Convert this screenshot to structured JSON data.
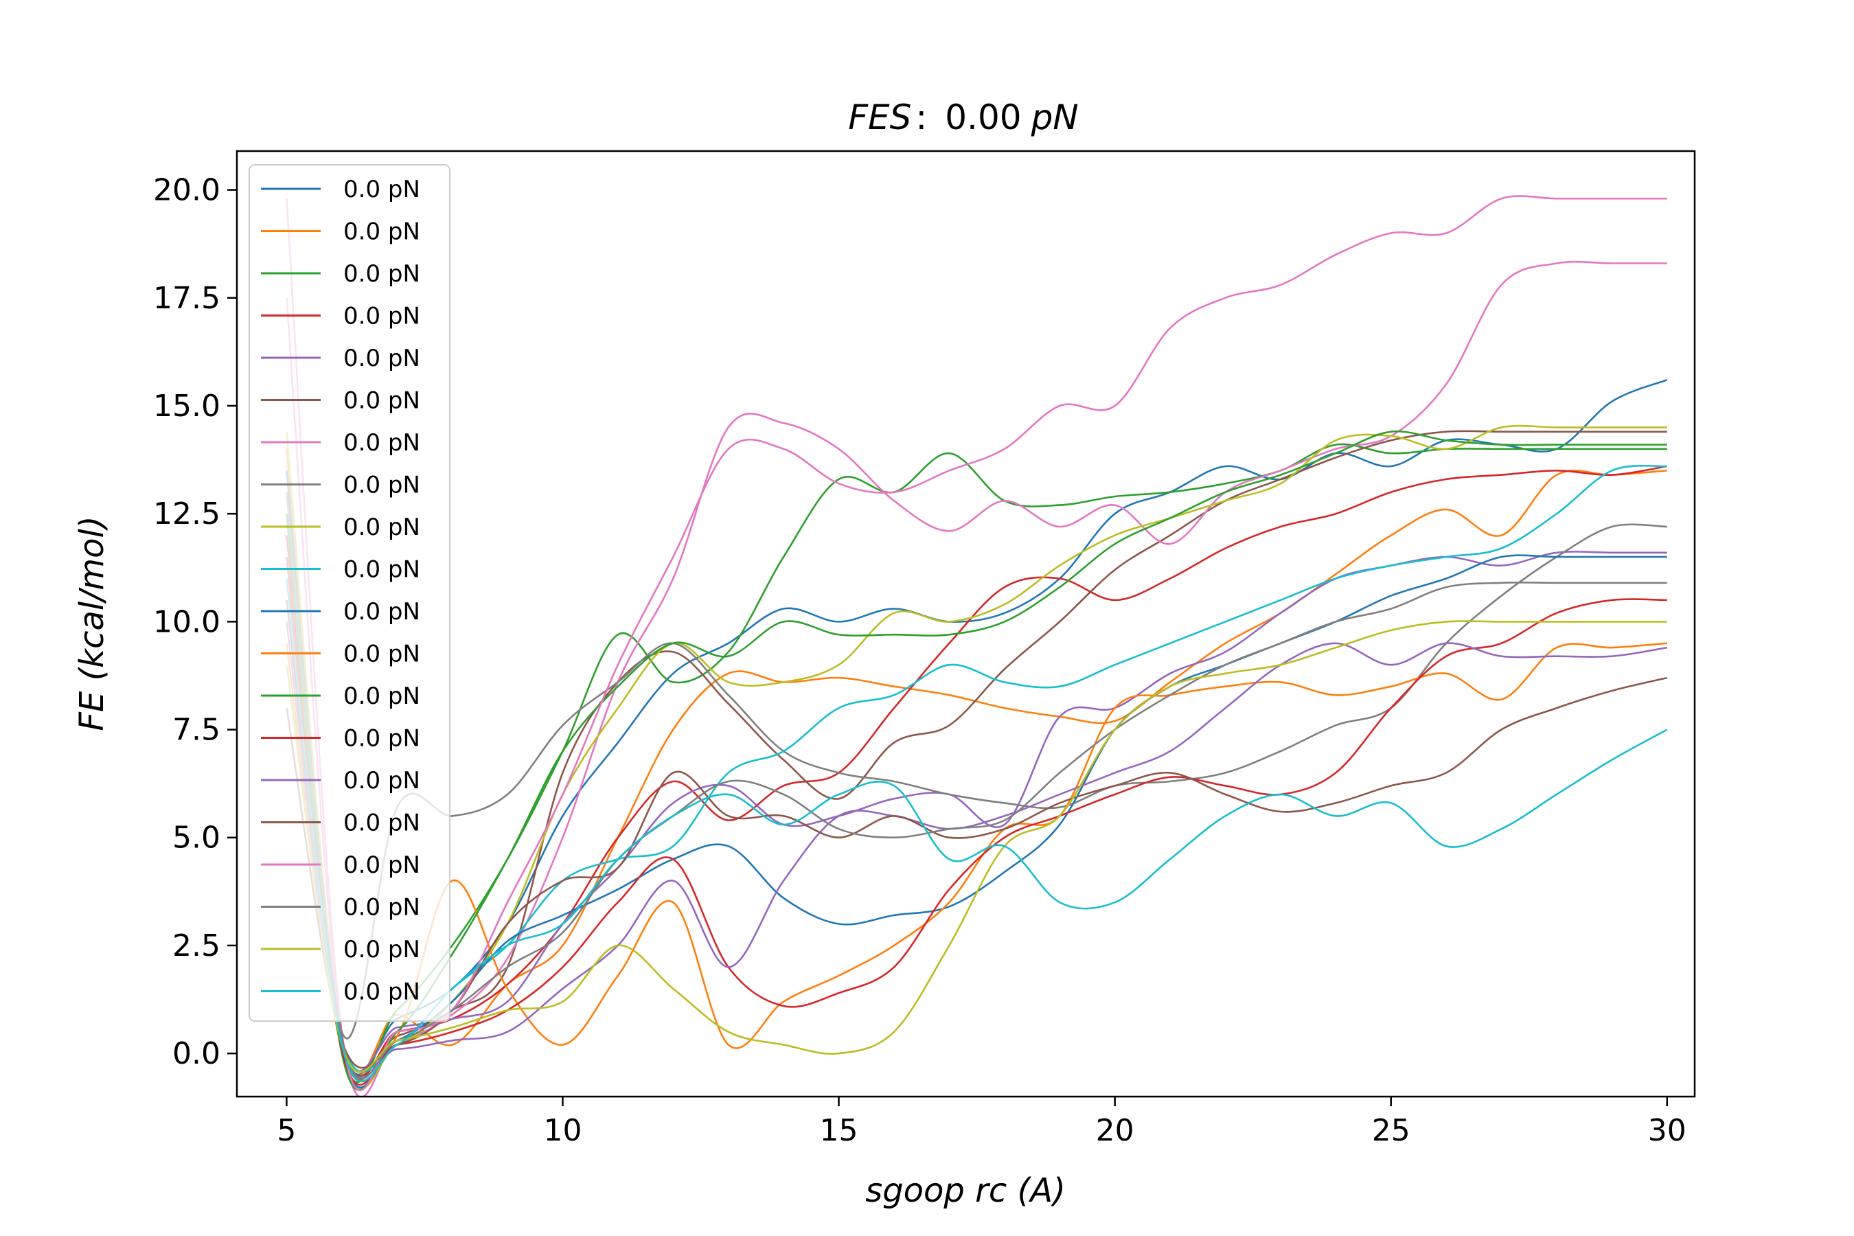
{
  "chart_data": {
    "type": "line",
    "title": "FES :  0.00 pN",
    "title_parts": {
      "italic": "FES",
      "separator": ":",
      "value": "0.00",
      "unit": "pN"
    },
    "xlabel": "sgoop rc (A)",
    "ylabel": "FE (kcal/mol)",
    "xlim": [
      4.1,
      30.5
    ],
    "ylim": [
      -1.0,
      20.9
    ],
    "xticks": [
      5,
      10,
      15,
      20,
      25,
      30
    ],
    "xtick_labels": [
      "5",
      "10",
      "15",
      "20",
      "25",
      "30"
    ],
    "yticks": [
      0.0,
      2.5,
      5.0,
      7.5,
      10.0,
      12.5,
      15.0,
      17.5,
      20.0
    ],
    "ytick_labels": [
      "0.0",
      "2.5",
      "5.0",
      "7.5",
      "10.0",
      "12.5",
      "15.0",
      "17.5",
      "20.0"
    ],
    "grid": false,
    "legend_position": "upper-left",
    "series": [
      {
        "name": "0.0 pN",
        "color": "#1f77b4",
        "x": [
          5,
          6,
          7,
          8,
          9,
          10,
          11,
          12,
          13,
          14,
          15,
          16,
          17,
          18,
          19,
          20,
          21,
          22,
          23,
          24,
          25,
          26,
          27,
          28,
          29,
          30
        ],
        "y": [
          12.5,
          0.3,
          0.8,
          1.5,
          3.0,
          5.5,
          7.2,
          8.8,
          9.5,
          10.3,
          10.0,
          10.3,
          10.0,
          10.2,
          11.0,
          12.5,
          13.0,
          13.6,
          13.3,
          13.9,
          13.6,
          14.2,
          14.1,
          14.0,
          15.1,
          15.6
        ]
      },
      {
        "name": "0.0 pN",
        "color": "#ff7f0e",
        "x": [
          5,
          6,
          7,
          8,
          9,
          10,
          11,
          12,
          13,
          14,
          15,
          16,
          17,
          18,
          19,
          20,
          21,
          22,
          23,
          24,
          25,
          26,
          27,
          28,
          29,
          30
        ],
        "y": [
          14.0,
          0.3,
          0.9,
          0.2,
          1.6,
          2.5,
          5.0,
          7.5,
          8.8,
          8.6,
          8.7,
          8.5,
          8.3,
          8.0,
          7.8,
          7.7,
          8.6,
          9.5,
          10.2,
          11.1,
          12.0,
          12.6,
          12.0,
          13.4,
          13.4,
          13.5
        ]
      },
      {
        "name": "0.0 pN",
        "color": "#2ca02c",
        "x": [
          5,
          6,
          7,
          8,
          9,
          10,
          11,
          12,
          13,
          14,
          15,
          16,
          17,
          18,
          19,
          20,
          21,
          22,
          23,
          24,
          25,
          26,
          27,
          28,
          29,
          30
        ],
        "y": [
          13.0,
          0.1,
          1.0,
          2.5,
          4.5,
          7.0,
          9.7,
          8.6,
          9.3,
          11.5,
          13.3,
          13.0,
          13.9,
          12.8,
          12.7,
          12.9,
          13.0,
          13.2,
          13.5,
          14.1,
          13.9,
          14.0,
          14.0,
          14.0,
          14.0,
          14.0
        ]
      },
      {
        "name": "0.0 pN",
        "color": "#d62728",
        "x": [
          5,
          6,
          7,
          8,
          9,
          10,
          11,
          12,
          13,
          14,
          15,
          16,
          17,
          18,
          19,
          20,
          21,
          22,
          23,
          24,
          25,
          26,
          27,
          28,
          29,
          30
        ],
        "y": [
          12.0,
          0.2,
          0.5,
          0.8,
          1.6,
          3.0,
          5.0,
          6.3,
          5.4,
          6.2,
          6.5,
          8.0,
          9.5,
          10.8,
          11.0,
          10.5,
          11.0,
          11.7,
          12.2,
          12.5,
          13.0,
          13.3,
          13.4,
          13.5,
          13.4,
          13.6
        ]
      },
      {
        "name": "0.0 pN",
        "color": "#9467bd",
        "x": [
          5,
          6,
          7,
          8,
          9,
          10,
          11,
          12,
          13,
          14,
          15,
          16,
          17,
          18,
          19,
          20,
          21,
          22,
          23,
          24,
          25,
          26,
          27,
          28,
          29,
          30
        ],
        "y": [
          11.0,
          0.3,
          0.6,
          0.8,
          1.2,
          3.0,
          4.3,
          5.8,
          6.2,
          5.3,
          5.5,
          5.9,
          6.0,
          5.3,
          7.8,
          8.0,
          8.8,
          9.3,
          10.2,
          11.0,
          11.3,
          11.5,
          11.3,
          11.6,
          11.6,
          11.6
        ]
      },
      {
        "name": "0.0 pN",
        "color": "#8c564b",
        "x": [
          5,
          6,
          7,
          8,
          9,
          10,
          11,
          12,
          13,
          14,
          15,
          16,
          17,
          18,
          19,
          20,
          21,
          22,
          23,
          24,
          25,
          26,
          27,
          28,
          29,
          30
        ],
        "y": [
          10.5,
          0.2,
          0.4,
          1.0,
          2.0,
          6.5,
          8.6,
          9.3,
          8.1,
          6.8,
          5.9,
          7.2,
          7.6,
          8.9,
          10.0,
          11.2,
          12.0,
          12.8,
          13.3,
          13.8,
          14.2,
          14.4,
          14.4,
          14.4,
          14.4,
          14.4
        ]
      },
      {
        "name": "0.0 pN",
        "color": "#e377c2",
        "x": [
          5,
          6,
          7,
          8,
          9,
          10,
          11,
          12,
          13,
          14,
          15,
          16,
          17,
          18,
          19,
          20,
          21,
          22,
          23,
          24,
          25,
          26,
          27,
          28,
          29,
          30
        ],
        "y": [
          19.8,
          0.5,
          0.3,
          0.9,
          2.2,
          5.0,
          8.6,
          11.0,
          14.5,
          14.6,
          14.0,
          12.8,
          12.1,
          12.8,
          12.2,
          12.7,
          11.8,
          13.0,
          13.5,
          14.0,
          14.3,
          15.5,
          17.8,
          18.3,
          18.3,
          18.3
        ]
      },
      {
        "name": "0.0 pN",
        "color": "#7f7f7f",
        "x": [
          5,
          6,
          7,
          8,
          9,
          10,
          11,
          12,
          13,
          14,
          15,
          16,
          17,
          18,
          19,
          20,
          21,
          22,
          23,
          24,
          25,
          26,
          27,
          28,
          29,
          30
        ],
        "y": [
          12.5,
          0.5,
          5.7,
          5.5,
          6.0,
          7.6,
          8.6,
          9.5,
          8.3,
          7.0,
          6.5,
          6.3,
          6.0,
          5.8,
          5.7,
          6.2,
          6.3,
          6.5,
          7.0,
          7.6,
          8.0,
          9.5,
          10.6,
          11.5,
          12.2,
          12.2
        ]
      },
      {
        "name": "0.0 pN",
        "color": "#bcbd22",
        "x": [
          5,
          6,
          7,
          8,
          9,
          10,
          11,
          12,
          13,
          14,
          15,
          16,
          17,
          18,
          19,
          20,
          21,
          22,
          23,
          24,
          25,
          26,
          27,
          28,
          29,
          30
        ],
        "y": [
          14.4,
          0.3,
          0.2,
          1.2,
          3.0,
          6.0,
          8.0,
          9.5,
          8.6,
          8.6,
          9.0,
          10.2,
          10.0,
          10.4,
          11.3,
          12.0,
          12.4,
          12.8,
          13.2,
          14.2,
          14.3,
          14.0,
          14.5,
          14.5,
          14.5,
          14.5
        ]
      },
      {
        "name": "0.0 pN",
        "color": "#17becf",
        "x": [
          5,
          6,
          7,
          8,
          9,
          10,
          11,
          12,
          13,
          14,
          15,
          16,
          17,
          18,
          19,
          20,
          21,
          22,
          23,
          24,
          25,
          26,
          27,
          28,
          29,
          30
        ],
        "y": [
          9.0,
          0.3,
          0.2,
          1.5,
          2.5,
          4.0,
          4.5,
          4.8,
          6.5,
          7.0,
          8.0,
          8.3,
          9.0,
          8.6,
          8.5,
          9.0,
          9.5,
          10.0,
          10.5,
          11.0,
          11.3,
          11.5,
          11.7,
          12.5,
          13.5,
          13.6
        ]
      },
      {
        "name": "0.0 pN",
        "color": "#1f77b4",
        "x": [
          5,
          6,
          7,
          8,
          9,
          10,
          11,
          12,
          13,
          14,
          15,
          16,
          17,
          18,
          19,
          20,
          21,
          22,
          23,
          24,
          25,
          26,
          27,
          28,
          29,
          30
        ],
        "y": [
          13.5,
          0.2,
          0.3,
          1.2,
          2.6,
          3.2,
          3.8,
          4.5,
          4.8,
          3.6,
          3.0,
          3.2,
          3.4,
          4.2,
          5.3,
          7.5,
          8.5,
          9.0,
          9.5,
          10.0,
          10.6,
          11.0,
          11.5,
          11.5,
          11.5,
          11.5
        ]
      },
      {
        "name": "0.0 pN",
        "color": "#ff7f0e",
        "x": [
          5,
          6,
          7,
          8,
          9,
          10,
          11,
          12,
          13,
          14,
          15,
          16,
          17,
          18,
          19,
          20,
          21,
          22,
          23,
          24,
          25,
          26,
          27,
          28,
          29,
          30
        ],
        "y": [
          9.5,
          0.1,
          0.4,
          4.0,
          1.5,
          0.2,
          1.8,
          3.5,
          0.2,
          1.2,
          1.8,
          2.5,
          3.5,
          5.2,
          5.5,
          8.0,
          8.3,
          8.5,
          8.6,
          8.3,
          8.5,
          8.8,
          8.2,
          9.4,
          9.4,
          9.5
        ]
      },
      {
        "name": "0.0 pN",
        "color": "#2ca02c",
        "x": [
          5,
          6,
          7,
          8,
          9,
          10,
          11,
          12,
          13,
          14,
          15,
          16,
          17,
          18,
          19,
          20,
          21,
          22,
          23,
          24,
          25,
          26,
          27,
          28,
          29,
          30
        ],
        "y": [
          12.5,
          0.0,
          0.5,
          2.3,
          4.5,
          7.0,
          8.5,
          9.5,
          9.2,
          10.0,
          9.7,
          9.7,
          9.7,
          10.0,
          10.8,
          11.8,
          12.4,
          13.0,
          13.4,
          13.9,
          14.4,
          14.2,
          14.1,
          14.1,
          14.1,
          14.1
        ]
      },
      {
        "name": "0.0 pN",
        "color": "#d62728",
        "x": [
          5,
          6,
          7,
          8,
          9,
          10,
          11,
          12,
          13,
          14,
          15,
          16,
          17,
          18,
          19,
          20,
          21,
          22,
          23,
          24,
          25,
          26,
          27,
          28,
          29,
          30
        ],
        "y": [
          11.5,
          0.1,
          0.2,
          0.5,
          1.0,
          2.0,
          3.5,
          4.5,
          2.0,
          1.1,
          1.4,
          2.0,
          3.8,
          5.0,
          5.5,
          6.0,
          6.4,
          6.2,
          6.0,
          6.5,
          8.0,
          9.2,
          9.5,
          10.2,
          10.5,
          10.5
        ]
      },
      {
        "name": "0.0 pN",
        "color": "#9467bd",
        "x": [
          5,
          6,
          7,
          8,
          9,
          10,
          11,
          12,
          13,
          14,
          15,
          16,
          17,
          18,
          19,
          20,
          21,
          22,
          23,
          24,
          25,
          26,
          27,
          28,
          29,
          30
        ],
        "y": [
          10.0,
          0.2,
          0.1,
          0.3,
          0.5,
          1.5,
          2.5,
          4.0,
          2.0,
          4.0,
          5.5,
          5.5,
          5.2,
          5.5,
          6.0,
          6.5,
          7.0,
          8.0,
          9.0,
          9.5,
          9.0,
          9.5,
          9.2,
          9.2,
          9.2,
          9.4
        ]
      },
      {
        "name": "0.0 pN",
        "color": "#8c564b",
        "x": [
          5,
          6,
          7,
          8,
          9,
          10,
          11,
          12,
          13,
          14,
          15,
          16,
          17,
          18,
          19,
          20,
          21,
          22,
          23,
          24,
          25,
          26,
          27,
          28,
          29,
          30
        ],
        "y": [
          8.0,
          0.3,
          0.2,
          1.0,
          3.0,
          4.0,
          4.3,
          6.5,
          5.5,
          5.5,
          5.0,
          5.5,
          5.0,
          5.2,
          5.8,
          6.2,
          6.5,
          6.0,
          5.6,
          5.8,
          6.2,
          6.5,
          7.5,
          8.0,
          8.4,
          8.7
        ]
      },
      {
        "name": "0.0 pN",
        "color": "#e377c2",
        "x": [
          5,
          6,
          7,
          8,
          9,
          10,
          11,
          12,
          13,
          14,
          15,
          16,
          17,
          18,
          19,
          20,
          21,
          22,
          23,
          24,
          25,
          26,
          27,
          28,
          29,
          30
        ],
        "y": [
          17.5,
          0.4,
          0.5,
          1.0,
          3.5,
          6.0,
          9.0,
          11.5,
          14.0,
          14.0,
          13.2,
          13.0,
          13.5,
          14.0,
          15.0,
          15.0,
          16.8,
          17.5,
          17.8,
          18.5,
          19.0,
          19.0,
          19.8,
          19.8,
          19.8,
          19.8
        ]
      },
      {
        "name": "0.0 pN",
        "color": "#7f7f7f",
        "x": [
          5,
          6,
          7,
          8,
          9,
          10,
          11,
          12,
          13,
          14,
          15,
          16,
          17,
          18,
          19,
          20,
          21,
          22,
          23,
          24,
          25,
          26,
          27,
          28,
          29,
          30
        ],
        "y": [
          13.0,
          0.4,
          0.3,
          1.0,
          2.0,
          2.8,
          4.5,
          5.5,
          6.3,
          6.0,
          5.2,
          5.0,
          5.2,
          5.4,
          6.5,
          7.5,
          8.3,
          9.0,
          9.5,
          10.0,
          10.3,
          10.8,
          10.9,
          10.9,
          10.9,
          10.9
        ]
      },
      {
        "name": "0.0 pN",
        "color": "#bcbd22",
        "x": [
          5,
          6,
          7,
          8,
          9,
          10,
          11,
          12,
          13,
          14,
          15,
          16,
          17,
          18,
          19,
          20,
          21,
          22,
          23,
          24,
          25,
          26,
          27,
          28,
          29,
          30
        ],
        "y": [
          9.0,
          0.2,
          0.3,
          0.6,
          1.0,
          1.2,
          2.5,
          1.5,
          0.5,
          0.2,
          0.0,
          0.5,
          2.5,
          4.8,
          5.5,
          7.5,
          8.5,
          8.8,
          9.0,
          9.4,
          9.8,
          10.0,
          10.0,
          10.0,
          10.0,
          10.0
        ]
      },
      {
        "name": "0.0 pN",
        "color": "#17becf",
        "x": [
          5,
          6,
          7,
          8,
          9,
          10,
          11,
          12,
          13,
          14,
          15,
          16,
          17,
          18,
          19,
          20,
          21,
          22,
          23,
          24,
          25,
          26,
          27,
          28,
          29,
          30
        ],
        "y": [
          11.0,
          0.2,
          0.2,
          1.5,
          2.5,
          3.0,
          4.5,
          5.5,
          6.0,
          5.3,
          6.0,
          6.2,
          4.5,
          4.8,
          3.5,
          3.5,
          4.5,
          5.5,
          6.0,
          5.5,
          5.8,
          4.8,
          5.2,
          6.0,
          6.8,
          7.5
        ]
      }
    ]
  }
}
